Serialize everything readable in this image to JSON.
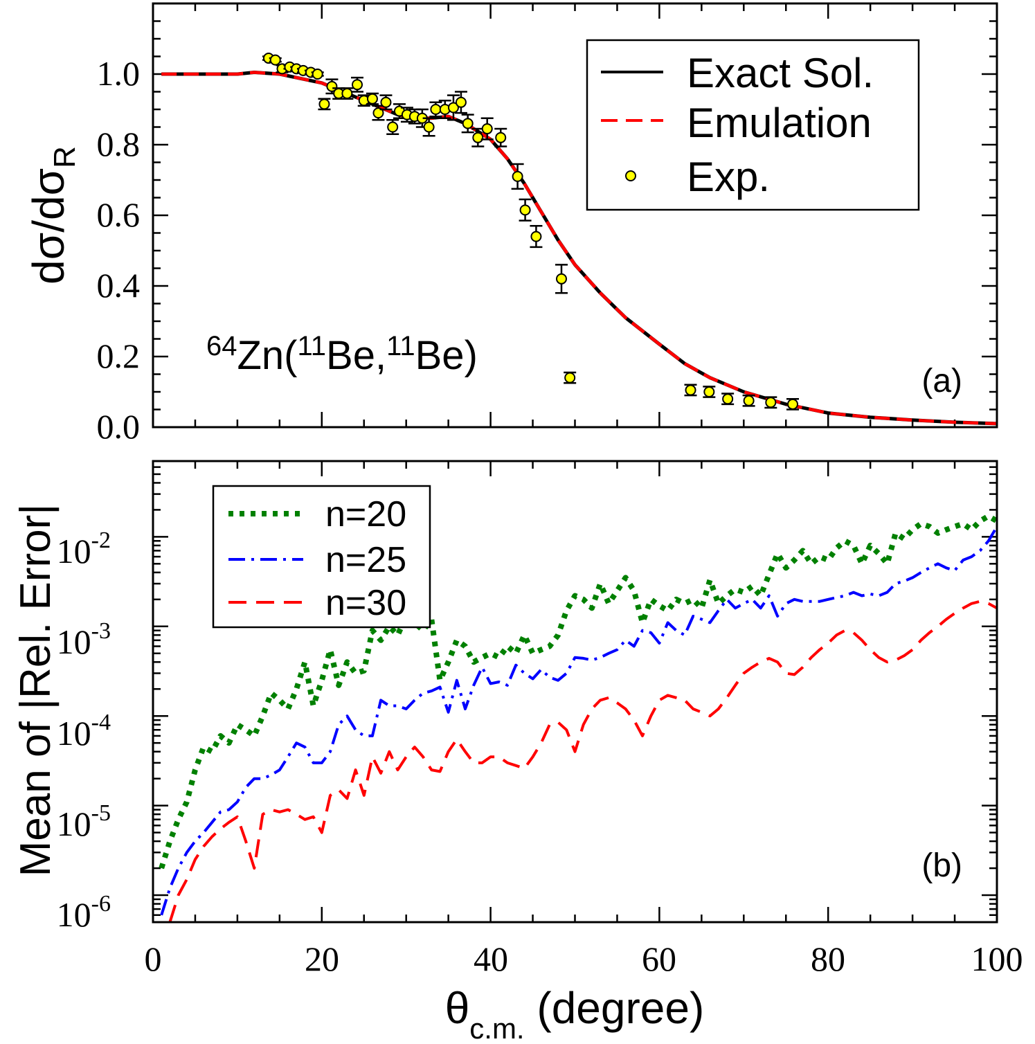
{
  "chart_data": [
    {
      "panel": "(a)",
      "type": "line",
      "reaction": {
        "pre": "64",
        "main": "Zn(",
        "s1": "11",
        "m1": "Be,",
        "s2": "11",
        "m2": "Be)"
      },
      "ylabel": {
        "main": "dσ/dσ",
        "sub": "R"
      },
      "xlim": [
        0,
        100
      ],
      "ylim": [
        0.0,
        1.2
      ],
      "yticks": [
        "0.0",
        "0.2",
        "0.4",
        "0.6",
        "0.8",
        "1.0"
      ],
      "legend": {
        "position": "top-right",
        "entries": [
          "Exact Sol.",
          "Emulation",
          "Exp."
        ]
      },
      "series": [
        {
          "name": "Exact Sol.",
          "style": "solid",
          "color": "#000000",
          "x": [
            1,
            5,
            10,
            12,
            15,
            18,
            20,
            23,
            26,
            29,
            31,
            33,
            35,
            37,
            40,
            42,
            44,
            46,
            48,
            50,
            53,
            56,
            60,
            63,
            66,
            70,
            75,
            80,
            85,
            90,
            95,
            100
          ],
          "y": [
            1.0,
            1.0,
            1.0,
            1.005,
            1.0,
            0.985,
            0.975,
            0.945,
            0.915,
            0.885,
            0.875,
            0.875,
            0.88,
            0.86,
            0.815,
            0.76,
            0.69,
            0.61,
            0.53,
            0.46,
            0.38,
            0.31,
            0.235,
            0.18,
            0.14,
            0.1,
            0.065,
            0.04,
            0.028,
            0.02,
            0.014,
            0.01
          ]
        },
        {
          "name": "Emulation",
          "style": "dashed",
          "color": "#ff0000",
          "x": [
            1,
            5,
            10,
            12,
            15,
            18,
            20,
            23,
            26,
            29,
            31,
            33,
            35,
            37,
            40,
            42,
            44,
            46,
            48,
            50,
            53,
            56,
            60,
            63,
            66,
            70,
            75,
            80,
            85,
            90,
            95,
            100
          ],
          "y": [
            1.0,
            1.0,
            1.0,
            1.005,
            1.0,
            0.985,
            0.975,
            0.945,
            0.915,
            0.885,
            0.875,
            0.875,
            0.88,
            0.86,
            0.815,
            0.76,
            0.69,
            0.61,
            0.53,
            0.46,
            0.38,
            0.31,
            0.235,
            0.18,
            0.14,
            0.1,
            0.065,
            0.04,
            0.028,
            0.02,
            0.014,
            0.01
          ]
        },
        {
          "name": "Exp.",
          "style": "marker",
          "color": "#ffff00",
          "x": [
            13.7,
            14.5,
            15.3,
            16.2,
            17.0,
            17.8,
            18.7,
            19.5,
            20.3,
            21.2,
            22.0,
            23.0,
            24.2,
            25.0,
            26.0,
            26.7,
            27.6,
            28.4,
            29.2,
            30.1,
            31.0,
            31.9,
            32.7,
            33.5,
            34.6,
            35.6,
            36.5,
            37.3,
            38.5,
            39.6,
            41.2,
            43.2,
            44.1,
            45.4,
            48.4,
            49.4,
            63.7,
            65.9,
            68.1,
            70.6,
            73.2,
            75.8
          ],
          "y": [
            1.045,
            1.04,
            1.015,
            1.02,
            1.015,
            1.01,
            1.005,
            1.0,
            0.915,
            0.965,
            0.945,
            0.945,
            0.97,
            0.925,
            0.93,
            0.89,
            0.92,
            0.85,
            0.895,
            0.885,
            0.88,
            0.875,
            0.85,
            0.9,
            0.9,
            0.905,
            0.92,
            0.86,
            0.82,
            0.845,
            0.82,
            0.71,
            0.615,
            0.54,
            0.42,
            0.14,
            0.105,
            0.1,
            0.08,
            0.075,
            0.07,
            0.065
          ],
          "err": [
            0.005,
            0.005,
            0.01,
            0.005,
            0.005,
            0.005,
            0.005,
            0.005,
            0.015,
            0.02,
            0.015,
            0.015,
            0.02,
            0.015,
            0.015,
            0.02,
            0.02,
            0.02,
            0.02,
            0.02,
            0.02,
            0.025,
            0.025,
            0.02,
            0.025,
            0.035,
            0.03,
            0.025,
            0.025,
            0.03,
            0.025,
            0.035,
            0.03,
            0.03,
            0.04,
            0.015,
            0.015,
            0.015,
            0.015,
            0.015,
            0.015,
            0.015
          ]
        }
      ]
    },
    {
      "panel": "(b)",
      "type": "line",
      "ylabel": "Mean of |Rel. Error|",
      "xlabel": {
        "main": "θ",
        "sub": "c.m.",
        "rest": " (degree)"
      },
      "xlim": [
        0,
        100
      ],
      "xticks": [
        "0",
        "20",
        "40",
        "60",
        "80",
        "100"
      ],
      "ylim": [
        5e-07,
        0.07
      ],
      "yscale": "log",
      "yticks": [
        {
          "base": "10",
          "exp": "-6"
        },
        {
          "base": "10",
          "exp": "-5"
        },
        {
          "base": "10",
          "exp": "-4"
        },
        {
          "base": "10",
          "exp": "-3"
        },
        {
          "base": "10",
          "exp": "-2"
        }
      ],
      "legend": {
        "position": "top-left",
        "entries": [
          "n=20",
          "n=25",
          "n=30"
        ]
      },
      "series": [
        {
          "name": "n=20",
          "style": "dotted",
          "color": "#008000",
          "x": [
            1,
            2,
            3,
            4,
            5,
            6,
            7,
            8,
            9,
            10,
            11,
            12,
            13,
            14,
            15,
            16,
            17,
            18,
            19,
            20,
            21,
            22,
            23,
            24,
            25,
            26,
            27,
            28,
            29,
            30,
            31,
            32,
            33,
            34,
            35,
            36,
            37,
            38,
            39,
            40,
            41,
            42,
            43,
            44,
            45,
            46,
            47,
            48,
            49,
            50,
            51,
            52,
            53,
            54,
            55,
            56,
            57,
            58,
            59,
            60,
            61,
            62,
            63,
            64,
            65,
            66,
            67,
            68,
            69,
            70,
            71,
            72,
            73,
            74,
            75,
            76,
            77,
            78,
            79,
            80,
            81,
            82,
            83,
            84,
            85,
            86,
            87,
            88,
            89,
            90,
            91,
            92,
            93,
            94,
            95,
            96,
            97,
            98,
            99,
            100
          ],
          "y": [
            2e-06,
            4e-06,
            7e-06,
            1.1e-05,
            2.5e-05,
            4.5e-05,
            4e-05,
            6e-05,
            5e-05,
            8e-05,
            7e-05,
            6e-05,
            0.0001,
            0.00018,
            0.00015,
            0.00012,
            0.0002,
            0.0004,
            0.00013,
            0.00025,
            0.00055,
            0.00022,
            0.0004,
            0.0003,
            0.00032,
            0.0009,
            0.0007,
            0.001,
            0.0008,
            0.0013,
            0.0011,
            0.0009,
            0.0012,
            0.00025,
            0.0004,
            0.0007,
            0.0006,
            0.0004,
            0.00045,
            0.0005,
            0.00045,
            0.0006,
            0.0005,
            0.0008,
            0.0005,
            0.00055,
            0.0006,
            0.0008,
            0.0015,
            0.0022,
            0.002,
            0.0016,
            0.003,
            0.0018,
            0.0025,
            0.0035,
            0.0025,
            0.0011,
            0.002,
            0.0017,
            0.0015,
            0.002,
            0.0018,
            0.002,
            0.0016,
            0.0033,
            0.0018,
            0.0022,
            0.0026,
            0.0024,
            0.0028,
            0.0022,
            0.0038,
            0.0065,
            0.0045,
            0.0055,
            0.007,
            0.005,
            0.006,
            0.0055,
            0.0075,
            0.009,
            0.008,
            0.005,
            0.008,
            0.0065,
            0.005,
            0.011,
            0.0095,
            0.012,
            0.014,
            0.013,
            0.011,
            0.012,
            0.013,
            0.014,
            0.012,
            0.015,
            0.017,
            0.015
          ]
        },
        {
          "name": "n=25",
          "style": "dashdot",
          "color": "#0000ff",
          "x": [
            1,
            2,
            3,
            4,
            5,
            6,
            7,
            8,
            9,
            10,
            11,
            12,
            13,
            14,
            15,
            16,
            17,
            18,
            19,
            20,
            21,
            22,
            23,
            24,
            25,
            26,
            27,
            28,
            29,
            30,
            31,
            32,
            33,
            34,
            35,
            36,
            37,
            38,
            39,
            40,
            41,
            42,
            43,
            44,
            45,
            46,
            47,
            48,
            49,
            50,
            51,
            52,
            53,
            54,
            55,
            56,
            57,
            58,
            59,
            60,
            61,
            62,
            63,
            64,
            65,
            66,
            67,
            68,
            69,
            70,
            71,
            72,
            73,
            74,
            75,
            76,
            77,
            78,
            79,
            80,
            81,
            82,
            83,
            84,
            85,
            86,
            87,
            88,
            89,
            90,
            91,
            92,
            93,
            94,
            95,
            96,
            97,
            98,
            99,
            100
          ],
          "y": [
            6e-07,
            1.2e-06,
            2e-06,
            3e-06,
            4e-06,
            5e-06,
            6.5e-06,
            8.5e-06,
            9e-06,
            1.1e-05,
            1.6e-05,
            2e-05,
            2e-05,
            2.2e-05,
            2.5e-05,
            3.5e-05,
            5e-05,
            4.5e-05,
            3e-05,
            3e-05,
            4e-05,
            8e-05,
            0.0001,
            7e-05,
            6e-05,
            6e-05,
            0.00015,
            0.00013,
            0.00013,
            0.00012,
            0.00015,
            0.00018,
            0.00019,
            0.00021,
            0.00011,
            0.00025,
            0.00012,
            0.00022,
            0.00035,
            0.00023,
            0.00024,
            0.00022,
            0.00037,
            0.0003,
            0.00026,
            0.00033,
            0.00027,
            0.00025,
            0.0003,
            0.00045,
            0.00044,
            0.00042,
            0.00045,
            0.0005,
            0.00055,
            0.0007,
            0.0006,
            0.0009,
            0.00085,
            0.00065,
            0.0011,
            0.0009,
            0.0008,
            0.0013,
            0.0012,
            0.0011,
            0.0015,
            0.002,
            0.0016,
            0.0018,
            0.002,
            0.0016,
            0.0022,
            0.0013,
            0.0018,
            0.002,
            0.0019,
            0.0019,
            0.0019,
            0.002,
            0.0021,
            0.0022,
            0.0024,
            0.0022,
            0.0023,
            0.0022,
            0.0024,
            0.003,
            0.0032,
            0.0035,
            0.004,
            0.0045,
            0.005,
            0.0045,
            0.0042,
            0.0055,
            0.006,
            0.007,
            0.009,
            0.013
          ]
        },
        {
          "name": "n=30",
          "style": "dashed",
          "color": "#ff0000",
          "x": [
            2,
            3,
            4,
            5,
            6,
            7,
            8,
            9,
            10,
            11,
            12,
            13,
            14,
            15,
            16,
            17,
            18,
            19,
            20,
            21,
            22,
            23,
            24,
            25,
            26,
            27,
            28,
            29,
            30,
            31,
            32,
            33,
            34,
            35,
            36,
            37,
            38,
            39,
            40,
            41,
            42,
            43,
            44,
            45,
            46,
            47,
            48,
            49,
            50,
            51,
            52,
            53,
            54,
            55,
            56,
            57,
            58,
            59,
            60,
            61,
            62,
            63,
            64,
            65,
            66,
            67,
            68,
            69,
            70,
            71,
            72,
            73,
            74,
            75,
            76,
            77,
            78,
            79,
            80,
            81,
            82,
            83,
            84,
            85,
            86,
            87,
            88,
            89,
            90,
            91,
            92,
            93,
            94,
            95,
            96,
            97,
            98,
            99,
            100
          ],
          "y": [
            5e-07,
            1e-06,
            1.5e-06,
            2.5e-06,
            3.5e-06,
            4.5e-06,
            5.5e-06,
            6.5e-06,
            7.5e-06,
            4e-06,
            2e-06,
            8e-06,
            9e-06,
            8.5e-06,
            9e-06,
            8e-06,
            7e-06,
            7.5e-06,
            5e-06,
            1.3e-05,
            1.5e-05,
            1.2e-05,
            2.5e-05,
            1.3e-05,
            3.5e-05,
            2.3e-05,
            4e-05,
            2.5e-05,
            3.5e-05,
            4.5e-05,
            3.5e-05,
            2.5e-05,
            2.4e-05,
            4e-05,
            5.5e-05,
            4e-05,
            3e-05,
            3e-05,
            3.5e-05,
            3.5e-05,
            3e-05,
            2.8e-05,
            2.6e-05,
            3.5e-05,
            5e-05,
            8e-05,
            8.5e-05,
            7e-05,
            4e-05,
            8e-05,
            0.00012,
            0.00015,
            0.00016,
            0.00014,
            0.00012,
            9e-05,
            6e-05,
            0.0001,
            0.00015,
            0.00017,
            0.00016,
            0.00015,
            0.00012,
            0.00011,
            0.0001,
            0.00012,
            0.00016,
            0.00022,
            0.0003,
            0.00035,
            0.0004,
            0.00044,
            0.0004,
            0.0003,
            0.00029,
            0.00035,
            0.00045,
            0.00055,
            0.00065,
            0.0008,
            0.0009,
            0.00085,
            0.0007,
            0.00055,
            0.00045,
            0.0004,
            0.00042,
            0.00047,
            0.00055,
            0.0007,
            0.00085,
            0.001,
            0.0012,
            0.0014,
            0.0016,
            0.0018,
            0.0019,
            0.0018,
            0.0016
          ]
        }
      ]
    }
  ]
}
